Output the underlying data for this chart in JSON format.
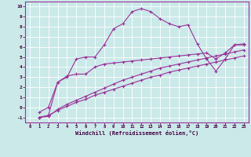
{
  "bg_color": "#cbe9e9",
  "line_color": "#993399",
  "grid_color": "#ffffff",
  "xlabel": "Windchill (Refroidissement éolien,°C)",
  "xlim": [
    -0.5,
    23.5
  ],
  "ylim": [
    -1.5,
    10.5
  ],
  "yticks": [
    -1,
    0,
    1,
    2,
    3,
    4,
    5,
    6,
    7,
    8,
    9,
    10
  ],
  "xticks": [
    0,
    1,
    2,
    3,
    4,
    5,
    6,
    7,
    8,
    9,
    10,
    11,
    12,
    13,
    14,
    15,
    16,
    17,
    18,
    19,
    20,
    21,
    22,
    23
  ],
  "series1_x": [
    1,
    2,
    3,
    4,
    5,
    6,
    7,
    8,
    9,
    10,
    11,
    12,
    13,
    14,
    15,
    16,
    17,
    18,
    19,
    20,
    21,
    22,
    23
  ],
  "series1_y": [
    -0.5,
    0.0,
    2.5,
    3.0,
    4.8,
    5.0,
    5.0,
    6.2,
    7.8,
    8.3,
    9.5,
    9.8,
    9.5,
    8.8,
    8.3,
    8.0,
    8.2,
    6.3,
    4.8,
    3.6,
    4.8,
    6.2,
    6.2
  ],
  "series2_x": [
    1,
    2,
    3,
    4,
    5,
    6,
    7,
    8,
    9,
    10,
    11,
    12,
    13,
    14,
    15,
    16,
    17,
    18,
    19,
    20,
    21,
    22,
    23
  ],
  "series2_y": [
    -1.0,
    -0.8,
    2.5,
    3.1,
    3.3,
    3.3,
    4.0,
    4.3,
    4.4,
    4.5,
    4.6,
    4.7,
    4.8,
    4.9,
    5.0,
    5.1,
    5.2,
    5.3,
    5.4,
    4.8,
    5.4,
    6.2,
    6.3
  ],
  "series3_x": [
    1,
    2,
    3,
    4,
    5,
    6,
    7,
    8,
    9,
    10,
    11,
    12,
    13,
    14,
    15,
    16,
    17,
    18,
    19,
    20,
    21,
    22,
    23
  ],
  "series3_y": [
    -1.0,
    -0.9,
    -0.2,
    0.3,
    0.7,
    1.1,
    1.5,
    1.9,
    2.3,
    2.7,
    3.0,
    3.3,
    3.6,
    3.9,
    4.1,
    4.3,
    4.5,
    4.7,
    4.9,
    5.1,
    5.3,
    5.5,
    5.7
  ],
  "series4_x": [
    1,
    2,
    3,
    4,
    5,
    6,
    7,
    8,
    9,
    10,
    11,
    12,
    13,
    14,
    15,
    16,
    17,
    18,
    19,
    20,
    21,
    22,
    23
  ],
  "series4_y": [
    -1.0,
    -0.8,
    -0.3,
    0.1,
    0.5,
    0.8,
    1.2,
    1.5,
    1.8,
    2.1,
    2.4,
    2.7,
    3.0,
    3.2,
    3.5,
    3.7,
    3.9,
    4.1,
    4.3,
    4.5,
    4.7,
    4.9,
    5.1
  ]
}
